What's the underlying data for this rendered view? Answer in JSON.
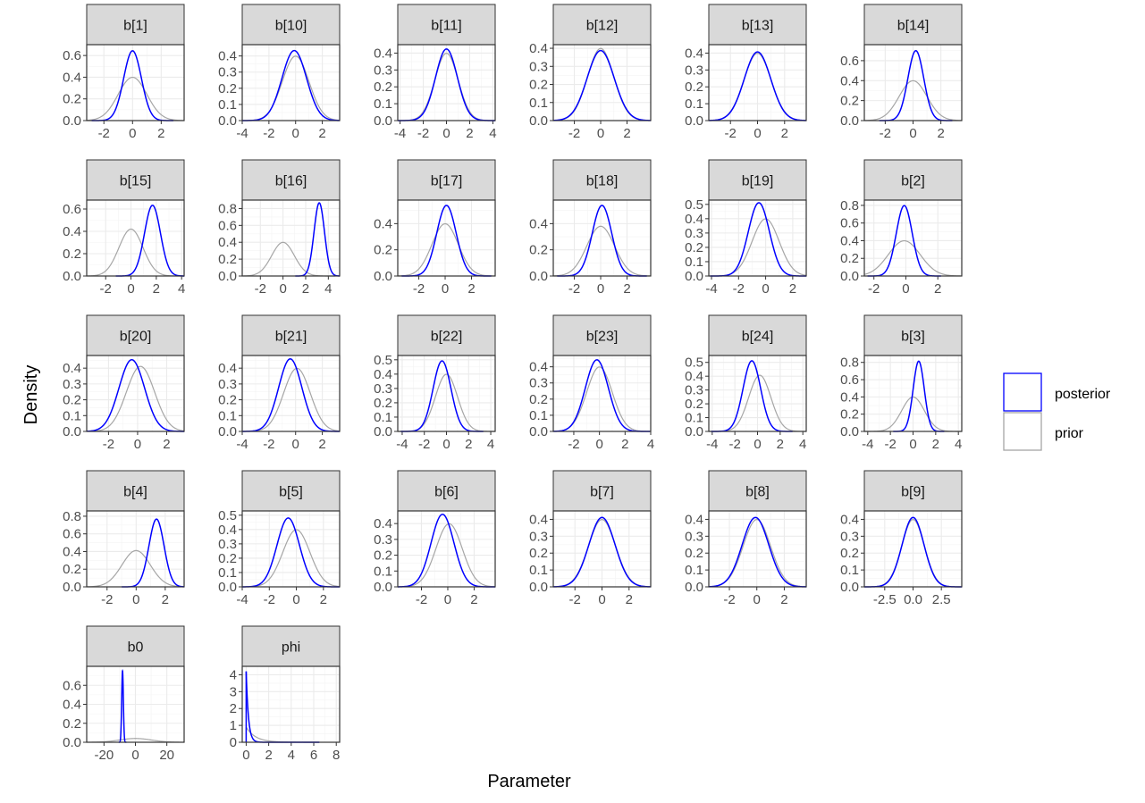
{
  "chart_data": {
    "type": "line",
    "xlabel": "Parameter",
    "ylabel": "Density",
    "legend": {
      "position": "right",
      "entries": [
        {
          "label": "posterior",
          "color": "#0000ff"
        },
        {
          "label": "prior",
          "color": "#a6a6a6"
        }
      ]
    },
    "panels": [
      {
        "title": "b[1]",
        "xlim": [
          -3.2,
          3.6
        ],
        "ylim": [
          0,
          0.7
        ],
        "xticks": [
          -2,
          0,
          2
        ],
        "xtick_labels": [
          "-2",
          "0",
          "2"
        ],
        "yticks": [
          0,
          0.2,
          0.4,
          0.6
        ],
        "ytick_labels": [
          "0.0",
          "0.2",
          "0.4",
          "0.6"
        ],
        "posterior": {
          "type": "normal",
          "mean": 0.0,
          "sd": 0.62
        },
        "prior": {
          "type": "normal",
          "mean": 0.0,
          "sd": 1.0
        }
      },
      {
        "title": "b[10]",
        "xlim": [
          -4,
          3.3
        ],
        "ylim": [
          0,
          0.47
        ],
        "xticks": [
          -4,
          -2,
          0,
          2
        ],
        "xtick_labels": [
          "-4",
          "-2",
          "0",
          "2"
        ],
        "yticks": [
          0,
          0.1,
          0.2,
          0.3,
          0.4
        ],
        "ytick_labels": [
          "0.0",
          "0.1",
          "0.2",
          "0.3",
          "0.4"
        ],
        "posterior": {
          "type": "normal",
          "mean": -0.1,
          "sd": 0.92
        },
        "prior": {
          "type": "normal",
          "mean": 0.0,
          "sd": 1.0
        }
      },
      {
        "title": "b[11]",
        "xlim": [
          -4.2,
          4.2
        ],
        "ylim": [
          0,
          0.45
        ],
        "xticks": [
          -4,
          -2,
          0,
          2,
          4
        ],
        "xtick_labels": [
          "-4",
          "-2",
          "0",
          "2",
          "4"
        ],
        "yticks": [
          0,
          0.1,
          0.2,
          0.3,
          0.4
        ],
        "ytick_labels": [
          "0.0",
          "0.1",
          "0.2",
          "0.3",
          "0.4"
        ],
        "posterior": {
          "type": "normal",
          "mean": 0.0,
          "sd": 0.94
        },
        "prior": {
          "type": "normal",
          "mean": 0.0,
          "sd": 1.0
        }
      },
      {
        "title": "b[12]",
        "xlim": [
          -3.6,
          3.8
        ],
        "ylim": [
          0,
          0.42
        ],
        "xticks": [
          -2,
          0,
          2
        ],
        "xtick_labels": [
          "-2",
          "0",
          "2"
        ],
        "yticks": [
          0,
          0.1,
          0.2,
          0.3,
          0.4
        ],
        "ytick_labels": [
          "0.0",
          "0.1",
          "0.2",
          "0.3",
          "0.4"
        ],
        "posterior": {
          "type": "normal",
          "mean": 0.0,
          "sd": 1.03
        },
        "prior": {
          "type": "normal",
          "mean": 0.0,
          "sd": 1.0
        }
      },
      {
        "title": "b[13]",
        "xlim": [
          -3.6,
          3.6
        ],
        "ylim": [
          0,
          0.45
        ],
        "xticks": [
          -2,
          0,
          2
        ],
        "xtick_labels": [
          "-2",
          "0",
          "2"
        ],
        "yticks": [
          0,
          0.1,
          0.2,
          0.3,
          0.4
        ],
        "ytick_labels": [
          "0.0",
          "0.1",
          "0.2",
          "0.3",
          "0.4"
        ],
        "posterior": {
          "type": "normal",
          "mean": 0.0,
          "sd": 0.98
        },
        "prior": {
          "type": "normal",
          "mean": 0.0,
          "sd": 1.0
        }
      },
      {
        "title": "b[14]",
        "xlim": [
          -3.5,
          3.5
        ],
        "ylim": [
          0,
          0.76
        ],
        "xticks": [
          -2,
          0,
          2
        ],
        "xtick_labels": [
          "-2",
          "0",
          "2"
        ],
        "yticks": [
          0,
          0.2,
          0.4,
          0.6
        ],
        "ytick_labels": [
          "0.0",
          "0.2",
          "0.4",
          "0.6"
        ],
        "posterior": {
          "type": "normal",
          "mean": 0.2,
          "sd": 0.57
        },
        "prior": {
          "type": "normal",
          "mean": 0.0,
          "sd": 1.0
        }
      },
      {
        "title": "b[15]",
        "xlim": [
          -3.5,
          4.2
        ],
        "ylim": [
          0,
          0.68
        ],
        "xticks": [
          -2,
          0,
          2,
          4
        ],
        "xtick_labels": [
          "-2",
          "0",
          "2",
          "4"
        ],
        "yticks": [
          0,
          0.2,
          0.4,
          0.6
        ],
        "ytick_labels": [
          "0.0",
          "0.2",
          "0.4",
          "0.6"
        ],
        "posterior": {
          "type": "normal",
          "mean": 1.7,
          "sd": 0.63
        },
        "prior": {
          "type": "normal",
          "mean": 0.0,
          "sd": 0.95
        }
      },
      {
        "title": "b[16]",
        "xlim": [
          -3.6,
          5.0
        ],
        "ylim": [
          0,
          0.9
        ],
        "xticks": [
          -2,
          0,
          2,
          4
        ],
        "xtick_labels": [
          "-2",
          "0",
          "2",
          "4"
        ],
        "yticks": [
          0,
          0.2,
          0.4,
          0.6,
          0.8
        ],
        "ytick_labels": [
          "0.0",
          "0.2",
          "0.4",
          "0.6",
          "0.8"
        ],
        "posterior": {
          "type": "normal",
          "mean": 3.2,
          "sd": 0.46
        },
        "prior": {
          "type": "normal",
          "mean": 0.0,
          "sd": 1.0
        }
      },
      {
        "title": "b[17]",
        "xlim": [
          -3.6,
          3.8
        ],
        "ylim": [
          0,
          0.58
        ],
        "xticks": [
          -2,
          0,
          2
        ],
        "xtick_labels": [
          "-2",
          "0",
          "2"
        ],
        "yticks": [
          0,
          0.2,
          0.4
        ],
        "ytick_labels": [
          "0.0",
          "0.2",
          "0.4"
        ],
        "posterior": {
          "type": "normal",
          "mean": 0.1,
          "sd": 0.74
        },
        "prior": {
          "type": "normal",
          "mean": 0.0,
          "sd": 1.0
        }
      },
      {
        "title": "b[18]",
        "xlim": [
          -3.6,
          3.8
        ],
        "ylim": [
          0,
          0.58
        ],
        "xticks": [
          -2,
          0,
          2
        ],
        "xtick_labels": [
          "-2",
          "0",
          "2"
        ],
        "yticks": [
          0,
          0.2,
          0.4
        ],
        "ytick_labels": [
          "0.0",
          "0.2",
          "0.4"
        ],
        "posterior": {
          "type": "normal",
          "mean": 0.1,
          "sd": 0.74
        },
        "prior": {
          "type": "normal",
          "mean": 0.0,
          "sd": 1.05
        }
      },
      {
        "title": "b[19]",
        "xlim": [
          -4.2,
          3.0
        ],
        "ylim": [
          0,
          0.53
        ],
        "xticks": [
          -4,
          -2,
          0,
          2
        ],
        "xtick_labels": [
          "-4",
          "-2",
          "0",
          "2"
        ],
        "yticks": [
          0,
          0.1,
          0.2,
          0.3,
          0.4,
          0.5
        ],
        "ytick_labels": [
          "0.0",
          "0.1",
          "0.2",
          "0.3",
          "0.4",
          "0.5"
        ],
        "posterior": {
          "type": "normal",
          "mean": -0.5,
          "sd": 0.78
        },
        "prior": {
          "type": "normal",
          "mean": 0.0,
          "sd": 1.0
        }
      },
      {
        "title": "b[2]",
        "xlim": [
          -2.6,
          3.5
        ],
        "ylim": [
          0,
          0.86
        ],
        "xticks": [
          -2,
          0,
          2
        ],
        "xtick_labels": [
          "-2",
          "0",
          "2"
        ],
        "yticks": [
          0,
          0.2,
          0.4,
          0.6,
          0.8
        ],
        "ytick_labels": [
          "0.0",
          "0.2",
          "0.4",
          "0.6",
          "0.8"
        ],
        "posterior": {
          "type": "normal",
          "mean": -0.1,
          "sd": 0.5
        },
        "prior": {
          "type": "normal",
          "mean": -0.1,
          "sd": 1.0
        }
      },
      {
        "title": "b[20]",
        "xlim": [
          -3.5,
          3.2
        ],
        "ylim": [
          0,
          0.48
        ],
        "xticks": [
          -2,
          0,
          2
        ],
        "xtick_labels": [
          "-2",
          "0",
          "2"
        ],
        "yticks": [
          0,
          0.1,
          0.2,
          0.3,
          0.4
        ],
        "ytick_labels": [
          "0.0",
          "0.1",
          "0.2",
          "0.3",
          "0.4"
        ],
        "posterior": {
          "type": "normal",
          "mean": -0.4,
          "sd": 0.88
        },
        "prior": {
          "type": "normal",
          "mean": 0.2,
          "sd": 0.97
        }
      },
      {
        "title": "b[21]",
        "xlim": [
          -4.0,
          3.3
        ],
        "ylim": [
          0,
          0.48
        ],
        "xticks": [
          -4,
          -2,
          0,
          2
        ],
        "xtick_labels": [
          "-4",
          "-2",
          "0",
          "2"
        ],
        "yticks": [
          0,
          0.1,
          0.2,
          0.3,
          0.4
        ],
        "ytick_labels": [
          "0.0",
          "0.1",
          "0.2",
          "0.3",
          "0.4"
        ],
        "posterior": {
          "type": "normal",
          "mean": -0.4,
          "sd": 0.87
        },
        "prior": {
          "type": "normal",
          "mean": 0.1,
          "sd": 1.0
        }
      },
      {
        "title": "b[22]",
        "xlim": [
          -4.4,
          4.4
        ],
        "ylim": [
          0,
          0.53
        ],
        "xticks": [
          -4,
          -2,
          0,
          2,
          4
        ],
        "xtick_labels": [
          "-4",
          "-2",
          "0",
          "2",
          "4"
        ],
        "yticks": [
          0,
          0.1,
          0.2,
          0.3,
          0.4,
          0.5
        ],
        "ytick_labels": [
          "0.0",
          "0.1",
          "0.2",
          "0.3",
          "0.4",
          "0.5"
        ],
        "posterior": {
          "type": "normal",
          "mean": -0.4,
          "sd": 0.81
        },
        "prior": {
          "type": "normal",
          "mean": 0.0,
          "sd": 1.0
        }
      },
      {
        "title": "b[23]",
        "xlim": [
          -3.6,
          4.0
        ],
        "ylim": [
          0,
          0.47
        ],
        "xticks": [
          -2,
          0,
          2,
          4
        ],
        "xtick_labels": [
          "-2",
          "0",
          "2",
          "4"
        ],
        "yticks": [
          0,
          0.1,
          0.2,
          0.3,
          0.4
        ],
        "ytick_labels": [
          "0.0",
          "0.1",
          "0.2",
          "0.3",
          "0.4"
        ],
        "posterior": {
          "type": "normal",
          "mean": -0.2,
          "sd": 0.9
        },
        "prior": {
          "type": "normal",
          "mean": 0.0,
          "sd": 1.0
        }
      },
      {
        "title": "b[24]",
        "xlim": [
          -4.3,
          4.3
        ],
        "ylim": [
          0,
          0.55
        ],
        "xticks": [
          -4,
          -2,
          0,
          2,
          4
        ],
        "xtick_labels": [
          "-4",
          "-2",
          "0",
          "2",
          "4"
        ],
        "yticks": [
          0,
          0.1,
          0.2,
          0.3,
          0.4,
          0.5
        ],
        "ytick_labels": [
          "0.0",
          "0.1",
          "0.2",
          "0.3",
          "0.4",
          "0.5"
        ],
        "posterior": {
          "type": "normal",
          "mean": -0.5,
          "sd": 0.78
        },
        "prior": {
          "type": "normal",
          "mean": 0.2,
          "sd": 0.98
        }
      },
      {
        "title": "b[3]",
        "xlim": [
          -4.3,
          4.3
        ],
        "ylim": [
          0,
          0.88
        ],
        "xticks": [
          -4,
          -2,
          0,
          2,
          4
        ],
        "xtick_labels": [
          "-4",
          "-2",
          "0",
          "2",
          "4"
        ],
        "yticks": [
          0,
          0.2,
          0.4,
          0.6,
          0.8
        ],
        "ytick_labels": [
          "0.0",
          "0.2",
          "0.4",
          "0.6",
          "0.8"
        ],
        "posterior": {
          "type": "normal",
          "mean": 0.5,
          "sd": 0.49
        },
        "prior": {
          "type": "normal",
          "mean": 0.0,
          "sd": 1.0
        }
      },
      {
        "title": "b[4]",
        "xlim": [
          -3.4,
          3.3
        ],
        "ylim": [
          0,
          0.86
        ],
        "xticks": [
          -2,
          0,
          2
        ],
        "xtick_labels": [
          "-2",
          "0",
          "2"
        ],
        "yticks": [
          0,
          0.2,
          0.4,
          0.6,
          0.8
        ],
        "ytick_labels": [
          "0.0",
          "0.2",
          "0.4",
          "0.6",
          "0.8"
        ],
        "posterior": {
          "type": "normal",
          "mean": 1.4,
          "sd": 0.52
        },
        "prior": {
          "type": "normal",
          "mean": 0.0,
          "sd": 0.97
        }
      },
      {
        "title": "b[5]",
        "xlim": [
          -4.0,
          3.2
        ],
        "ylim": [
          0,
          0.53
        ],
        "xticks": [
          -4,
          -2,
          0,
          2
        ],
        "xtick_labels": [
          "-4",
          "-2",
          "0",
          "2"
        ],
        "yticks": [
          0,
          0.1,
          0.2,
          0.3,
          0.4,
          0.5
        ],
        "ytick_labels": [
          "0.0",
          "0.1",
          "0.2",
          "0.3",
          "0.4",
          "0.5"
        ],
        "posterior": {
          "type": "normal",
          "mean": -0.6,
          "sd": 0.83
        },
        "prior": {
          "type": "normal",
          "mean": 0.0,
          "sd": 1.0
        }
      },
      {
        "title": "b[6]",
        "xlim": [
          -3.8,
          3.6
        ],
        "ylim": [
          0,
          0.48
        ],
        "xticks": [
          -2,
          0,
          2
        ],
        "xtick_labels": [
          "-2",
          "0",
          "2"
        ],
        "yticks": [
          0,
          0.1,
          0.2,
          0.3,
          0.4
        ],
        "ytick_labels": [
          "0.0",
          "0.1",
          "0.2",
          "0.3",
          "0.4"
        ],
        "posterior": {
          "type": "normal",
          "mean": -0.4,
          "sd": 0.87
        },
        "prior": {
          "type": "normal",
          "mean": 0.1,
          "sd": 1.0
        }
      },
      {
        "title": "b[7]",
        "xlim": [
          -3.6,
          3.6
        ],
        "ylim": [
          0,
          0.45
        ],
        "xticks": [
          -2,
          0,
          2
        ],
        "xtick_labels": [
          "-2",
          "0",
          "2"
        ],
        "yticks": [
          0,
          0.1,
          0.2,
          0.3,
          0.4
        ],
        "ytick_labels": [
          "0.0",
          "0.1",
          "0.2",
          "0.3",
          "0.4"
        ],
        "posterior": {
          "type": "normal",
          "mean": 0.0,
          "sd": 0.97
        },
        "prior": {
          "type": "normal",
          "mean": 0.0,
          "sd": 1.0
        }
      },
      {
        "title": "b[8]",
        "xlim": [
          -3.5,
          3.6
        ],
        "ylim": [
          0,
          0.45
        ],
        "xticks": [
          -2,
          0,
          2
        ],
        "xtick_labels": [
          "-2",
          "0",
          "2"
        ],
        "yticks": [
          0,
          0.1,
          0.2,
          0.3,
          0.4
        ],
        "ytick_labels": [
          "0.0",
          "0.1",
          "0.2",
          "0.3",
          "0.4"
        ],
        "posterior": {
          "type": "normal",
          "mean": -0.1,
          "sd": 0.97
        },
        "prior": {
          "type": "normal",
          "mean": 0.0,
          "sd": 1.0
        }
      },
      {
        "title": "b[9]",
        "xlim": [
          -4.3,
          4.3
        ],
        "ylim": [
          0,
          0.45
        ],
        "xticks": [
          -2.5,
          0,
          2.5
        ],
        "xtick_labels": [
          "-2.5",
          "0.0",
          "2.5"
        ],
        "yticks": [
          0,
          0.1,
          0.2,
          0.3,
          0.4
        ],
        "ytick_labels": [
          "0.0",
          "0.1",
          "0.2",
          "0.3",
          "0.4"
        ],
        "posterior": {
          "type": "normal",
          "mean": 0.0,
          "sd": 0.97
        },
        "prior": {
          "type": "normal",
          "mean": 0.0,
          "sd": 1.0
        }
      },
      {
        "title": "b0",
        "xlim": [
          -31,
          31
        ],
        "ylim": [
          0,
          0.8
        ],
        "xticks": [
          -20,
          0,
          20
        ],
        "xtick_labels": [
          "-20",
          "0",
          "20"
        ],
        "yticks": [
          0,
          0.2,
          0.4,
          0.6
        ],
        "ytick_labels": [
          "0.0",
          "0.2",
          "0.4",
          "0.6"
        ],
        "posterior": {
          "type": "normal",
          "mean": -8.2,
          "sd": 0.53
        },
        "prior": {
          "type": "normal",
          "mean": 0.0,
          "sd": 10.0
        }
      },
      {
        "title": "phi",
        "xlim": [
          -0.35,
          8.3
        ],
        "ylim": [
          0,
          4.5
        ],
        "xticks": [
          0,
          2,
          4,
          6,
          8
        ],
        "xtick_labels": [
          "0",
          "2",
          "4",
          "6",
          "8"
        ],
        "yticks": [
          0,
          1,
          2,
          3,
          4
        ],
        "ytick_labels": [
          "0",
          "1",
          "2",
          "3",
          "4"
        ],
        "posterior": {
          "type": "exponential",
          "rate": 5.0,
          "peak": 4.2
        },
        "prior": {
          "type": "exponential",
          "rate": 1.2,
          "peak": 0.9
        }
      }
    ]
  }
}
